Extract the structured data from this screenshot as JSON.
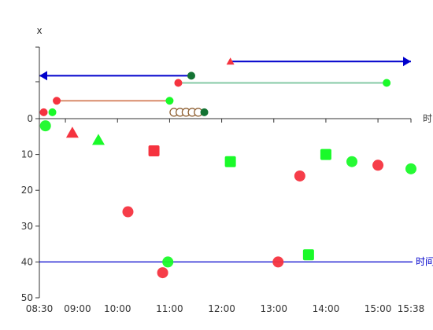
{
  "chart_data": {
    "type": "scatter",
    "y_axis_label": "x",
    "x_axis_label": "时",
    "ref_line_label": "时间",
    "ylim": [
      50,
      0
    ],
    "y_ticks": [
      0,
      10,
      20,
      30,
      40,
      50
    ],
    "x_ticks": [
      "08:30",
      "09:00",
      "10:00",
      "11:00",
      "12:00",
      "13:00",
      "14:00",
      "15:00",
      "15:38"
    ],
    "colors": {
      "red": "#f5333f",
      "green": "#1afa29",
      "dark_green": "#137333",
      "blue": "#0000cc",
      "salmon": "#d98c6c",
      "teal": "#86c9a6"
    },
    "reference_line": {
      "y": 40,
      "color": "#0000cc"
    },
    "points": [
      {
        "time": "08:37",
        "y": 2,
        "shape": "circle",
        "color": "green"
      },
      {
        "time": "09:08",
        "y": 4,
        "shape": "triangle",
        "color": "red"
      },
      {
        "time": "09:38",
        "y": 6,
        "shape": "triangle",
        "color": "green"
      },
      {
        "time": "10:12",
        "y": 26,
        "shape": "circle",
        "color": "red"
      },
      {
        "time": "10:42",
        "y": 9,
        "shape": "square",
        "color": "red"
      },
      {
        "time": "10:52",
        "y": 43,
        "shape": "circle",
        "color": "red"
      },
      {
        "time": "10:58",
        "y": 40,
        "shape": "circle",
        "color": "green"
      },
      {
        "time": "12:10",
        "y": 12,
        "shape": "square",
        "color": "green"
      },
      {
        "time": "13:05",
        "y": 40,
        "shape": "circle",
        "color": "red"
      },
      {
        "time": "13:30",
        "y": 16,
        "shape": "circle",
        "color": "red"
      },
      {
        "time": "13:40",
        "y": 38,
        "shape": "square",
        "color": "green"
      },
      {
        "time": "14:00",
        "y": 10,
        "shape": "square",
        "color": "green"
      },
      {
        "time": "14:30",
        "y": 12,
        "shape": "circle",
        "color": "green"
      },
      {
        "time": "15:00",
        "y": 13,
        "shape": "circle",
        "color": "red"
      },
      {
        "time": "15:38",
        "y": 14,
        "shape": "circle",
        "color": "green"
      }
    ],
    "events": [
      {
        "type": "arrow",
        "direction": "left",
        "from": "08:30",
        "to": "11:25",
        "level": 1.2,
        "color": "blue",
        "end_marker": "dark_green"
      },
      {
        "type": "arrow",
        "direction": "right",
        "from": "12:10",
        "to": "15:38",
        "level": 1.6,
        "color": "blue",
        "start_marker": "red-triangle"
      },
      {
        "type": "span",
        "from": "11:10",
        "to": "15:10",
        "level": 1.0,
        "color": "teal",
        "start": "red",
        "end": "green"
      },
      {
        "type": "span",
        "from": "08:50",
        "to": "11:00",
        "level": 0.5,
        "color": "salmon",
        "start": "red",
        "end": "green"
      },
      {
        "type": "markers",
        "times": [
          "08:35",
          "08:45"
        ],
        "level": 0.2,
        "colors": [
          "red",
          "green"
        ]
      },
      {
        "type": "cluster",
        "times": [
          "11:05",
          "11:12",
          "11:19",
          "11:26",
          "11:33",
          "11:40"
        ],
        "level": 0.2,
        "colors": [
          "hollow",
          "hollow",
          "hollow",
          "hollow",
          "hollow",
          "dark_green"
        ]
      }
    ]
  }
}
